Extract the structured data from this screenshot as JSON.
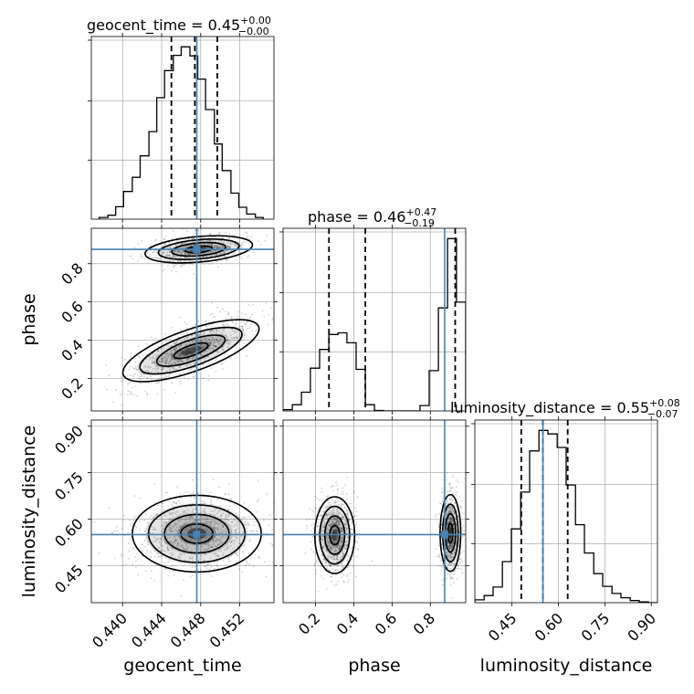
{
  "chart_data": {
    "type": "corner",
    "parameters": [
      "geocent_time",
      "phase",
      "luminosity_distance"
    ],
    "colors": {
      "truth": "#4682b4",
      "lines": "#000000",
      "grid": "#b0b0b0",
      "density": "#000000"
    },
    "grid": true,
    "truths": {
      "geocent_time": 0.4476,
      "phase": 0.875,
      "luminosity_distance": 0.55
    },
    "axes": {
      "geocent_time": {
        "xlim": [
          0.4368,
          0.4555
        ],
        "ticks": [
          0.44,
          0.444,
          0.448,
          0.452
        ],
        "tick_labels": [
          "0.440",
          "0.444",
          "0.448",
          "0.452"
        ]
      },
      "phase": {
        "lim": [
          0.03,
          0.985
        ],
        "ticks": [
          0.2,
          0.4,
          0.6,
          0.8
        ],
        "tick_labels": [
          "0.2",
          "0.4",
          "0.6",
          "0.8"
        ]
      },
      "luminosity_distance": {
        "lim": [
          0.33,
          0.92
        ],
        "ticks": [
          0.45,
          0.6,
          0.75,
          0.9
        ],
        "tick_labels": [
          "0.45",
          "0.60",
          "0.75",
          "0.90"
        ]
      }
    },
    "titles": [
      {
        "param": "geocent_time",
        "label": "geocent_time = 0.45",
        "sup": "+0.00",
        "sub": "−0.00"
      },
      {
        "param": "phase",
        "label": "phase = 0.46",
        "sup": "+0.47",
        "sub": "−0.19"
      },
      {
        "param": "luminosity_distance",
        "label": "luminosity_distance = 0.55",
        "sup": "+0.08",
        "sub": "−0.07"
      }
    ],
    "axis_labels": {
      "geocent_time": "geocent_time",
      "phase": "phase",
      "luminosity_distance": "luminosity_distance"
    },
    "histograms": {
      "geocent_time": {
        "bin_edges": [
          0.4376,
          0.4385,
          0.4393,
          0.4401,
          0.441,
          0.4418,
          0.4427,
          0.4435,
          0.4443,
          0.4452,
          0.446,
          0.4469,
          0.4477,
          0.4485,
          0.4494,
          0.4502,
          0.4511,
          0.4519,
          0.4527,
          0.4536,
          0.4544
        ],
        "counts": [
          0.3,
          0.7,
          2.2,
          4.9,
          7.4,
          11.2,
          15.5,
          21.5,
          26.3,
          29.0,
          30.5,
          28.9,
          24.8,
          19.4,
          13.3,
          8.6,
          4.6,
          2.1,
          0.9,
          0.3
        ],
        "quantiles": [
          0.445,
          0.4474,
          0.4497
        ]
      },
      "phase": {
        "bin_edges": [
          0.03,
          0.078,
          0.126,
          0.173,
          0.221,
          0.269,
          0.317,
          0.364,
          0.412,
          0.46,
          0.508,
          0.555,
          0.603,
          0.651,
          0.699,
          0.746,
          0.794,
          0.842,
          0.89,
          0.937,
          0.985
        ],
        "counts": [
          0.3,
          1.5,
          4.5,
          10.3,
          14.8,
          18.4,
          18.8,
          16.4,
          10.0,
          1.5,
          0.1,
          0,
          0,
          0,
          0,
          1.3,
          9.7,
          24.8,
          41.5,
          26.2
        ],
        "quantiles": [
          0.27,
          0.46,
          0.93
        ]
      },
      "luminosity_distance": {
        "bin_edges": [
          0.33,
          0.36,
          0.389,
          0.419,
          0.448,
          0.478,
          0.507,
          0.537,
          0.566,
          0.596,
          0.625,
          0.655,
          0.684,
          0.714,
          0.743,
          0.773,
          0.802,
          0.832,
          0.861,
          0.891,
          0.92
        ],
        "counts": [
          0.4,
          1.0,
          2.2,
          5.8,
          10.4,
          15.6,
          21.4,
          24.3,
          23.8,
          21.9,
          16.6,
          11.0,
          7.0,
          4.1,
          2.3,
          1.3,
          0.7,
          0.3,
          0.1,
          0
        ],
        "quantiles": [
          0.48,
          0.55,
          0.63
        ]
      }
    },
    "joint_2d": [
      {
        "x": "geocent_time",
        "y": "phase",
        "modes": [
          {
            "mean": [
              0.4478,
              0.875
            ],
            "sd": [
              0.0024,
              0.04
            ],
            "rho": 0.3
          },
          {
            "mean": [
              0.447,
              0.345
            ],
            "sd": [
              0.0032,
              0.09
            ],
            "rho": 0.72
          }
        ]
      },
      {
        "x": "geocent_time",
        "y": "luminosity_distance",
        "modes": [
          {
            "mean": [
              0.4476,
              0.553
            ],
            "sd": [
              0.0033,
              0.062
            ],
            "rho": 0.0
          }
        ]
      },
      {
        "x": "phase",
        "y": "luminosity_distance",
        "modes": [
          {
            "mean": [
              0.3,
              0.548
            ],
            "sd": [
              0.052,
              0.062
            ],
            "rho": 0.0
          },
          {
            "mean": [
              0.905,
              0.555
            ],
            "sd": [
              0.027,
              0.062
            ],
            "rho": 0.0
          }
        ]
      }
    ]
  }
}
